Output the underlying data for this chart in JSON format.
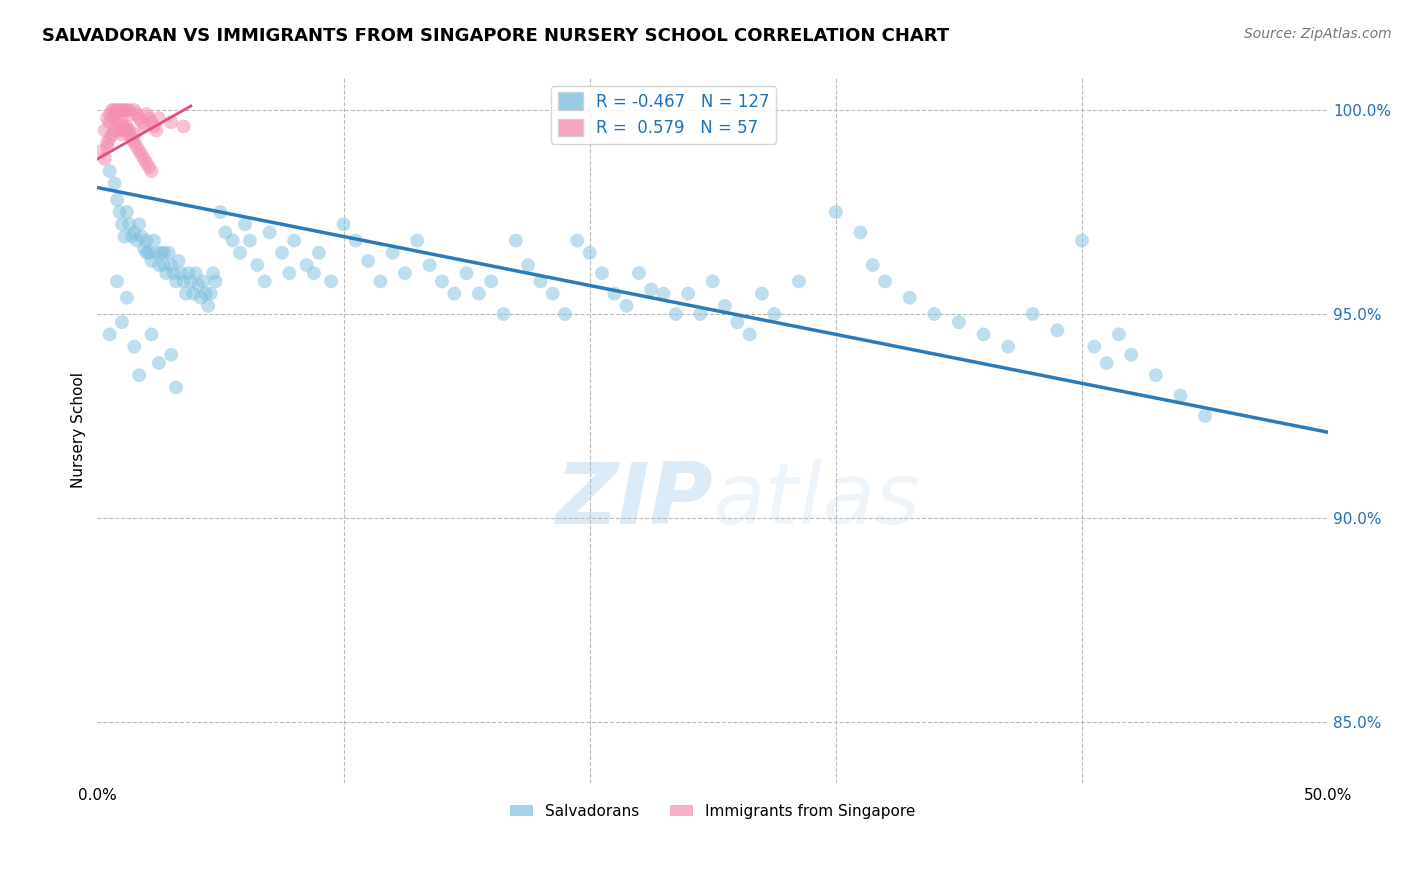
{
  "title": "SALVADORAN VS IMMIGRANTS FROM SINGAPORE NURSERY SCHOOL CORRELATION CHART",
  "source_text": "Source: ZipAtlas.com",
  "xlabel_blue": "Salvadorans",
  "xlabel_pink": "Immigrants from Singapore",
  "ylabel": "Nursery School",
  "watermark_zip": "ZIP",
  "watermark_atlas": "atlas",
  "xlim": [
    0.0,
    0.5
  ],
  "ylim": [
    0.835,
    1.008
  ],
  "xticks": [
    0.0,
    0.5
  ],
  "yticks": [
    0.85,
    0.9,
    0.95,
    1.0
  ],
  "legend_blue_R": "-0.467",
  "legend_blue_N": "127",
  "legend_pink_R": " 0.579",
  "legend_pink_N": "57",
  "blue_color": "#7fbfdf",
  "pink_color": "#f48fb1",
  "trendline_blue_color": "#2b7bba",
  "trendline_pink_color": "#e0507a",
  "blue_scatter_x": [
    0.005,
    0.007,
    0.008,
    0.009,
    0.01,
    0.011,
    0.012,
    0.013,
    0.014,
    0.015,
    0.016,
    0.017,
    0.018,
    0.019,
    0.02,
    0.021,
    0.022,
    0.023,
    0.024,
    0.025,
    0.026,
    0.027,
    0.028,
    0.029,
    0.03,
    0.031,
    0.032,
    0.033,
    0.034,
    0.035,
    0.036,
    0.037,
    0.038,
    0.039,
    0.04,
    0.041,
    0.042,
    0.043,
    0.044,
    0.045,
    0.046,
    0.047,
    0.048,
    0.05,
    0.052,
    0.055,
    0.058,
    0.06,
    0.062,
    0.065,
    0.068,
    0.07,
    0.075,
    0.078,
    0.08,
    0.085,
    0.088,
    0.09,
    0.095,
    0.1,
    0.105,
    0.11,
    0.115,
    0.12,
    0.125,
    0.13,
    0.135,
    0.14,
    0.145,
    0.15,
    0.155,
    0.16,
    0.165,
    0.17,
    0.175,
    0.18,
    0.185,
    0.19,
    0.195,
    0.2,
    0.205,
    0.21,
    0.215,
    0.22,
    0.225,
    0.23,
    0.235,
    0.24,
    0.245,
    0.25,
    0.255,
    0.26,
    0.265,
    0.27,
    0.275,
    0.285,
    0.3,
    0.31,
    0.315,
    0.32,
    0.33,
    0.34,
    0.35,
    0.36,
    0.37,
    0.38,
    0.39,
    0.4,
    0.405,
    0.41,
    0.415,
    0.42,
    0.43,
    0.44,
    0.45,
    0.005,
    0.008,
    0.01,
    0.012,
    0.015,
    0.017,
    0.02,
    0.022,
    0.025,
    0.027,
    0.03,
    0.032
  ],
  "blue_scatter_y": [
    0.985,
    0.982,
    0.978,
    0.975,
    0.972,
    0.969,
    0.975,
    0.972,
    0.969,
    0.97,
    0.968,
    0.972,
    0.969,
    0.966,
    0.968,
    0.965,
    0.963,
    0.968,
    0.965,
    0.962,
    0.965,
    0.962,
    0.96,
    0.965,
    0.962,
    0.96,
    0.958,
    0.963,
    0.96,
    0.958,
    0.955,
    0.96,
    0.958,
    0.955,
    0.96,
    0.957,
    0.954,
    0.958,
    0.955,
    0.952,
    0.955,
    0.96,
    0.958,
    0.975,
    0.97,
    0.968,
    0.965,
    0.972,
    0.968,
    0.962,
    0.958,
    0.97,
    0.965,
    0.96,
    0.968,
    0.962,
    0.96,
    0.965,
    0.958,
    0.972,
    0.968,
    0.963,
    0.958,
    0.965,
    0.96,
    0.968,
    0.962,
    0.958,
    0.955,
    0.96,
    0.955,
    0.958,
    0.95,
    0.968,
    0.962,
    0.958,
    0.955,
    0.95,
    0.968,
    0.965,
    0.96,
    0.955,
    0.952,
    0.96,
    0.956,
    0.955,
    0.95,
    0.955,
    0.95,
    0.958,
    0.952,
    0.948,
    0.945,
    0.955,
    0.95,
    0.958,
    0.975,
    0.97,
    0.962,
    0.958,
    0.954,
    0.95,
    0.948,
    0.945,
    0.942,
    0.95,
    0.946,
    0.968,
    0.942,
    0.938,
    0.945,
    0.94,
    0.935,
    0.93,
    0.925,
    0.945,
    0.958,
    0.948,
    0.954,
    0.942,
    0.935,
    0.965,
    0.945,
    0.938,
    0.965,
    0.94,
    0.932
  ],
  "pink_scatter_x": [
    0.002,
    0.003,
    0.004,
    0.004,
    0.005,
    0.005,
    0.006,
    0.006,
    0.007,
    0.007,
    0.008,
    0.008,
    0.009,
    0.009,
    0.01,
    0.01,
    0.011,
    0.011,
    0.012,
    0.012,
    0.013,
    0.013,
    0.014,
    0.015,
    0.015,
    0.016,
    0.017,
    0.018,
    0.019,
    0.02,
    0.021,
    0.022,
    0.023,
    0.024,
    0.003,
    0.004,
    0.005,
    0.006,
    0.007,
    0.008,
    0.009,
    0.01,
    0.011,
    0.012,
    0.013,
    0.014,
    0.015,
    0.016,
    0.017,
    0.018,
    0.019,
    0.02,
    0.021,
    0.022,
    0.025,
    0.03,
    0.035
  ],
  "pink_scatter_y": [
    0.99,
    0.995,
    0.998,
    0.992,
    0.999,
    0.993,
    1.0,
    0.994,
    1.0,
    0.995,
    1.0,
    0.996,
    1.0,
    0.995,
    1.0,
    0.994,
    1.0,
    0.995,
    1.0,
    0.996,
    1.0,
    0.995,
    0.999,
    1.0,
    0.994,
    0.999,
    0.998,
    0.997,
    0.996,
    0.999,
    0.998,
    0.997,
    0.996,
    0.995,
    0.988,
    0.991,
    0.997,
    0.998,
    0.999,
    0.999,
    0.998,
    0.997,
    0.996,
    0.995,
    0.994,
    0.993,
    0.992,
    0.991,
    0.99,
    0.989,
    0.988,
    0.987,
    0.986,
    0.985,
    0.998,
    0.997,
    0.996
  ],
  "blue_trendline_x": [
    0.0,
    0.5
  ],
  "blue_trendline_y": [
    0.981,
    0.921
  ],
  "pink_trendline_x": [
    0.0,
    0.038
  ],
  "pink_trendline_y": [
    0.988,
    1.001
  ],
  "title_fontsize": 13,
  "axis_label_fontsize": 11,
  "tick_fontsize": 11,
  "legend_fontsize": 12,
  "source_fontsize": 10,
  "scatter_size": 100
}
